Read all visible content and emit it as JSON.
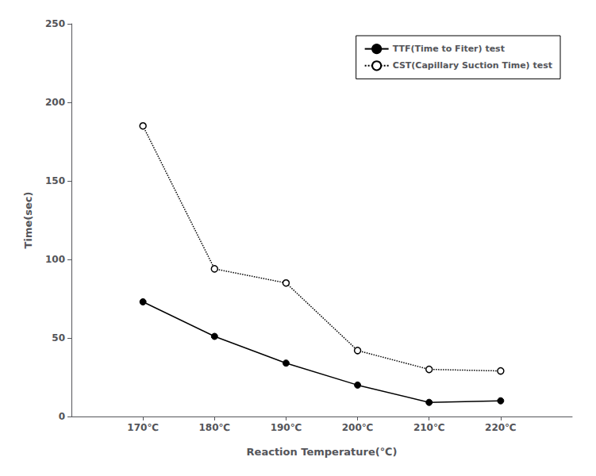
{
  "chart_data": {
    "type": "line",
    "xlabel": "Reaction Temperature(℃)",
    "ylabel": "Time(sec)",
    "x": [
      170,
      180,
      190,
      200,
      210,
      220
    ],
    "xlim": [
      160,
      230
    ],
    "xticks": [
      {
        "value": 170,
        "label": "170℃"
      },
      {
        "value": 180,
        "label": "180℃"
      },
      {
        "value": 190,
        "label": "190℃"
      },
      {
        "value": 200,
        "label": "200℃"
      },
      {
        "value": 210,
        "label": "210℃"
      },
      {
        "value": 220,
        "label": "220℃"
      }
    ],
    "ylim": [
      0,
      250
    ],
    "yticks": [
      0,
      50,
      100,
      150,
      200,
      250
    ],
    "grid": false,
    "legend": "upper right",
    "series": [
      {
        "name": "TTF(Time to Fiter) test",
        "color": "#000000",
        "marker": "circle",
        "line_style": "solid",
        "values": [
          73,
          51,
          34,
          20,
          9,
          10
        ]
      },
      {
        "name": "CST(Capillary Suction Time) test",
        "color": "#000000",
        "marker": "open_circle",
        "line_style": "dotted",
        "values": [
          185,
          94,
          85,
          42,
          30,
          29
        ]
      }
    ]
  }
}
